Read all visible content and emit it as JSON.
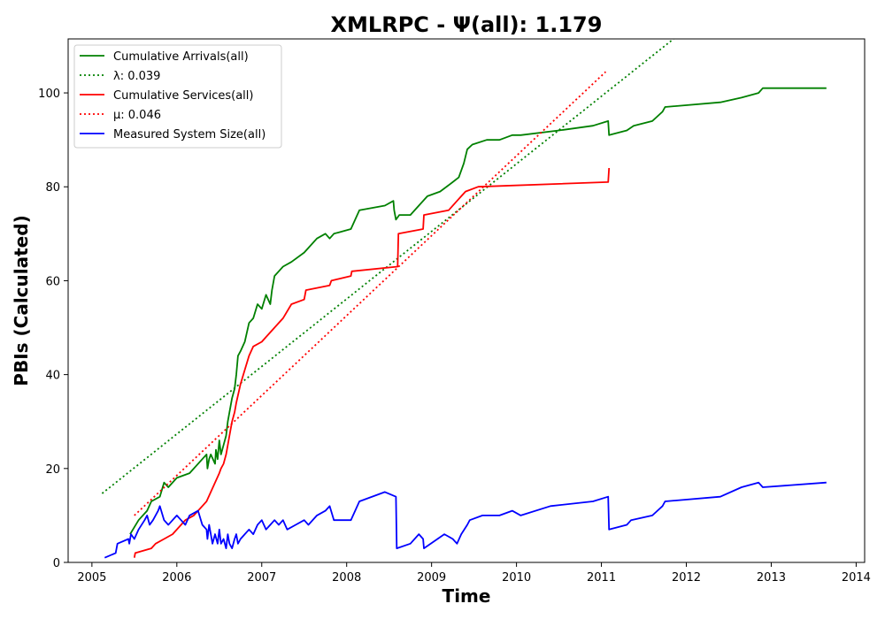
{
  "chart_data": {
    "type": "line",
    "title": "XMLRPC -  Ψ(all): 1.179",
    "xlabel": "Time",
    "ylabel": "PBIs (Calculated)",
    "xlim": [
      2004.72,
      2014.1
    ],
    "ylim": [
      0,
      111.5
    ],
    "x_ticks": [
      2005,
      2006,
      2007,
      2008,
      2009,
      2010,
      2011,
      2012,
      2013,
      2014
    ],
    "x_tick_labels": [
      "2005",
      "2006",
      "2007",
      "2008",
      "2009",
      "2010",
      "2011",
      "2012",
      "2013",
      "2014"
    ],
    "y_ticks": [
      0,
      20,
      40,
      60,
      80,
      100
    ],
    "y_tick_labels": [
      "0",
      "20",
      "40",
      "60",
      "80",
      "100"
    ],
    "grid": false,
    "legend_position": "top-left",
    "series": [
      {
        "name": "Cumulative Arrivals(all)",
        "color": "#008000",
        "style": "solid",
        "x": [
          2005.45,
          2005.55,
          2005.65,
          2005.7,
          2005.8,
          2005.85,
          2005.9,
          2006.0,
          2006.15,
          2006.3,
          2006.35,
          2006.36,
          2006.38,
          2006.4,
          2006.45,
          2006.46,
          2006.48,
          2006.5,
          2006.52,
          2006.55,
          2006.58,
          2006.6,
          2006.62,
          2006.65,
          2006.68,
          2006.7,
          2006.72,
          2006.75,
          2006.8,
          2006.85,
          2006.9,
          2006.95,
          2007.0,
          2007.05,
          2007.1,
          2007.12,
          2007.15,
          2007.2,
          2007.25,
          2007.35,
          2007.5,
          2007.6,
          2007.65,
          2007.75,
          2007.8,
          2007.85,
          2008.05,
          2008.15,
          2008.45,
          2008.55,
          2008.56,
          2008.58,
          2008.62,
          2008.75,
          2008.85,
          2008.95,
          2009.1,
          2009.25,
          2009.32,
          2009.38,
          2009.42,
          2009.48,
          2009.65,
          2009.8,
          2009.95,
          2010.05,
          2010.5,
          2010.9,
          2011.08,
          2011.09,
          2011.3,
          2011.38,
          2011.6,
          2011.72,
          2011.75,
          2012.4,
          2012.65,
          2012.85,
          2012.9,
          2013.65
        ],
        "y": [
          6,
          9,
          11,
          13,
          14,
          17,
          16,
          18,
          19,
          22,
          23,
          20,
          22,
          23,
          21,
          24,
          22,
          26,
          23,
          25,
          27,
          30,
          32,
          35,
          37,
          40,
          44,
          45,
          47,
          51,
          52,
          55,
          54,
          57,
          55,
          58,
          61,
          62,
          63,
          64,
          66,
          68,
          69,
          70,
          69,
          70,
          71,
          75,
          76,
          77,
          75,
          73,
          74,
          74,
          76,
          78,
          79,
          81,
          82,
          85,
          88,
          89,
          90,
          90,
          91,
          91,
          92,
          93,
          94,
          91,
          92,
          93,
          94,
          96,
          97,
          98,
          99,
          100,
          101,
          101
        ],
        "annotations": [
          "λ: 0.039"
        ]
      },
      {
        "name": "λ: 0.039",
        "color": "#008000",
        "style": "dotted",
        "x": [
          2005.12,
          2011.85
        ],
        "y": [
          14.7,
          111.5
        ]
      },
      {
        "name": "Cumulative Services(all)",
        "color": "#ff0000",
        "style": "solid",
        "x": [
          2005.5,
          2005.51,
          2005.7,
          2005.75,
          2005.85,
          2005.95,
          2006.05,
          2006.1,
          2006.2,
          2006.3,
          2006.35,
          2006.4,
          2006.45,
          2006.5,
          2006.52,
          2006.55,
          2006.58,
          2006.6,
          2006.62,
          2006.65,
          2006.68,
          2006.7,
          2006.75,
          2006.8,
          2006.85,
          2006.9,
          2007.0,
          2007.05,
          2007.15,
          2007.25,
          2007.35,
          2007.5,
          2007.52,
          2007.8,
          2007.82,
          2008.05,
          2008.06,
          2008.6,
          2008.61,
          2008.9,
          2008.91,
          2009.2,
          2009.3,
          2009.35,
          2009.4,
          2009.55,
          2011.08,
          2011.09
        ],
        "y": [
          1,
          2,
          3,
          4,
          5,
          6,
          8,
          9,
          10,
          12,
          13,
          15,
          17,
          19,
          20,
          21,
          23,
          25,
          27,
          30,
          32,
          34,
          38,
          41,
          44,
          46,
          47,
          48,
          50,
          52,
          55,
          56,
          58,
          59,
          60,
          61,
          62,
          63,
          70,
          71,
          74,
          75,
          77,
          78,
          79,
          80,
          81,
          84
        ],
        "annotations": [
          "μ: 0.046"
        ]
      },
      {
        "name": "μ: 0.046",
        "color": "#ff0000",
        "style": "dotted",
        "x": [
          2005.5,
          2011.05
        ],
        "y": [
          10,
          104.5
        ]
      },
      {
        "name": "Measured System Size(all)",
        "color": "#0000ff",
        "style": "solid",
        "x": [
          2005.15,
          2005.28,
          2005.3,
          2005.43,
          2005.44,
          2005.46,
          2005.5,
          2005.55,
          2005.62,
          2005.65,
          2005.68,
          2005.72,
          2005.78,
          2005.8,
          2005.85,
          2005.9,
          2005.95,
          2006.0,
          2006.05,
          2006.1,
          2006.15,
          2006.25,
          2006.3,
          2006.35,
          2006.36,
          2006.38,
          2006.4,
          2006.42,
          2006.45,
          2006.48,
          2006.5,
          2006.52,
          2006.55,
          2006.58,
          2006.6,
          2006.62,
          2006.65,
          2006.68,
          2006.7,
          2006.72,
          2006.75,
          2006.8,
          2006.85,
          2006.9,
          2006.95,
          2007.0,
          2007.05,
          2007.1,
          2007.15,
          2007.2,
          2007.25,
          2007.3,
          2007.4,
          2007.5,
          2007.55,
          2007.65,
          2007.75,
          2007.8,
          2007.85,
          2007.95,
          2008.05,
          2008.15,
          2008.45,
          2008.58,
          2008.59,
          2008.75,
          2008.85,
          2008.9,
          2008.91,
          2009.15,
          2009.25,
          2009.3,
          2009.35,
          2009.42,
          2009.45,
          2009.6,
          2009.8,
          2009.95,
          2010.05,
          2010.4,
          2010.9,
          2011.08,
          2011.09,
          2011.3,
          2011.35,
          2011.6,
          2011.72,
          2011.75,
          2012.4,
          2012.65,
          2012.85,
          2012.9,
          2013.65
        ],
        "y": [
          1,
          2,
          4,
          5,
          4,
          6,
          5,
          7,
          9,
          10,
          8,
          9,
          11,
          12,
          9,
          8,
          9,
          10,
          9,
          8,
          10,
          11,
          8,
          7,
          5,
          8,
          6,
          4,
          6,
          4,
          7,
          4,
          5,
          3,
          6,
          4,
          3,
          5,
          6,
          4,
          5,
          6,
          7,
          6,
          8,
          9,
          7,
          8,
          9,
          8,
          9,
          7,
          8,
          9,
          8,
          10,
          11,
          12,
          9,
          9,
          9,
          13,
          15,
          14,
          3,
          4,
          6,
          5,
          3,
          6,
          5,
          4,
          6,
          8,
          9,
          10,
          10,
          11,
          10,
          12,
          13,
          14,
          7,
          8,
          9,
          10,
          12,
          13,
          14,
          16,
          17,
          16,
          17
        ]
      }
    ],
    "legend": [
      {
        "label": "Cumulative Arrivals(all)",
        "color": "#008000",
        "style": "solid"
      },
      {
        "label": "λ: 0.039",
        "color": "#008000",
        "style": "dotted"
      },
      {
        "label": "Cumulative Services(all)",
        "color": "#ff0000",
        "style": "solid"
      },
      {
        "label": "μ: 0.046",
        "color": "#ff0000",
        "style": "dotted"
      },
      {
        "label": "Measured System Size(all)",
        "color": "#0000ff",
        "style": "solid"
      }
    ]
  }
}
